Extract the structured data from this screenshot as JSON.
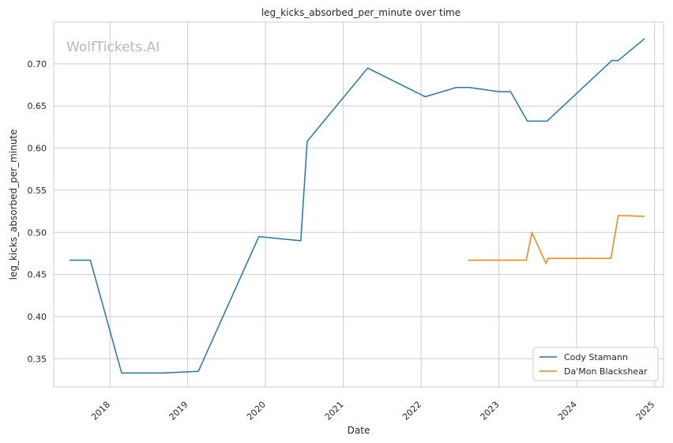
{
  "chart_data": {
    "type": "line",
    "title": "leg_kicks_absorbed_per_minute over time",
    "xlabel": "Date",
    "ylabel": "leg_kicks_absorbed_per_minute",
    "watermark": "WolfTickets.AI",
    "xlim": [
      "2017-04-12",
      "2025-02-12"
    ],
    "ylim": [
      0.3165,
      0.7496
    ],
    "x_ticks": [
      "2018-01-01",
      "2019-01-01",
      "2020-01-01",
      "2021-01-01",
      "2022-01-01",
      "2023-01-01",
      "2024-01-01",
      "2025-01-01"
    ],
    "x_tick_labels": [
      "2018",
      "2019",
      "2020",
      "2021",
      "2022",
      "2023",
      "2024",
      "2025"
    ],
    "y_ticks": [
      0.35,
      0.4,
      0.45,
      0.5,
      0.55,
      0.6,
      0.65,
      0.7
    ],
    "y_tick_labels": [
      "0.35",
      "0.40",
      "0.45",
      "0.50",
      "0.55",
      "0.60",
      "0.65",
      "0.70"
    ],
    "grid": true,
    "legend_position": "bottom-right",
    "series": [
      {
        "name": "Cody Stamann",
        "color": "#1f77b4",
        "x": [
          "2017-06-25",
          "2017-10-01",
          "2018-02-25",
          "2018-09-01",
          "2019-02-20",
          "2019-12-01",
          "2020-06-15",
          "2020-07-15",
          "2021-04-25",
          "2022-01-20",
          "2022-06-15",
          "2022-08-15",
          "2023-01-01",
          "2023-02-25",
          "2023-05-15",
          "2023-08-15",
          "2024-06-15",
          "2024-07-15",
          "2024-11-15"
        ],
        "y": [
          0.467,
          0.467,
          0.333,
          0.333,
          0.335,
          0.495,
          0.49,
          0.608,
          0.695,
          0.661,
          0.672,
          0.672,
          0.667,
          0.667,
          0.632,
          0.632,
          0.704,
          0.704,
          0.73
        ]
      },
      {
        "name": "Da'Mon Blackshear",
        "color": "#ff7f0e",
        "x": [
          "2022-08-10",
          "2023-05-10",
          "2023-06-05",
          "2023-08-10",
          "2023-08-20",
          "2024-06-10",
          "2024-07-15",
          "2024-11-15"
        ],
        "y": [
          0.467,
          0.467,
          0.5,
          0.463,
          0.469,
          0.469,
          0.52,
          0.519
        ]
      }
    ]
  }
}
